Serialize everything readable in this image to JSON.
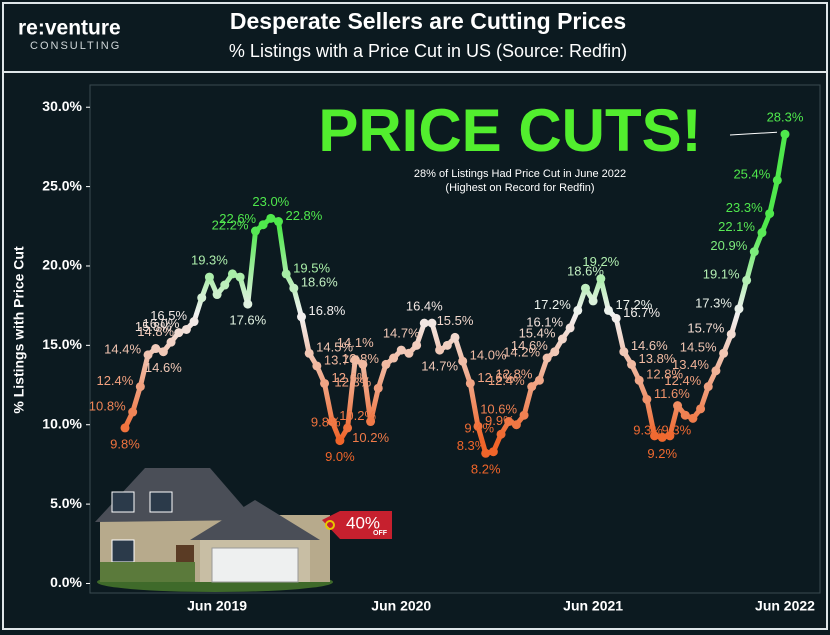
{
  "logo": {
    "name": "re:venture",
    "tagline": "CONSULTING"
  },
  "badge": {
    "value": "40%",
    "sub": "OFF"
  },
  "chart_data": {
    "type": "line",
    "title": "Desperate Sellers are Cutting Prices",
    "subtitle": "% Listings with a Price Cut in US (Source: Redfin)",
    "y_label": "% Listings with Price Cut",
    "annotation": {
      "headline": "PRICE CUTS!",
      "lines": [
        "28% of Listings Had Price Cut in June 2022",
        "(Highest on Record for Redfin)"
      ]
    },
    "gradient": [
      "#f0652a",
      "#f2f2f2",
      "#4fe84c"
    ],
    "ylim": [
      -0.6,
      31.4
    ],
    "yticks": [
      {
        "value": 0,
        "label": "0.0%"
      },
      {
        "value": 5,
        "label": "5.0%"
      },
      {
        "value": 10,
        "label": "10.0%"
      },
      {
        "value": 15,
        "label": "15.0%"
      },
      {
        "value": 20,
        "label": "20.0%"
      },
      {
        "value": 25,
        "label": "25.0%"
      },
      {
        "value": 30,
        "label": "30.0%"
      }
    ],
    "categories": [
      null,
      null,
      null,
      null,
      null,
      null,
      null,
      null,
      null,
      null,
      null,
      null,
      "Jun 2019",
      null,
      null,
      null,
      null,
      null,
      null,
      null,
      null,
      null,
      null,
      null,
      null,
      null,
      null,
      null,
      null,
      null,
      null,
      null,
      null,
      null,
      null,
      null,
      "Jun 2020",
      null,
      null,
      null,
      null,
      null,
      null,
      null,
      null,
      null,
      null,
      null,
      null,
      null,
      null,
      null,
      null,
      null,
      null,
      null,
      null,
      null,
      null,
      null,
      null,
      "Jun 2021",
      null,
      null,
      null,
      null,
      null,
      null,
      null,
      null,
      null,
      null,
      null,
      null,
      null,
      null,
      null,
      null,
      null,
      null,
      null,
      null,
      null,
      null,
      null,
      null,
      "Jun 2022"
    ],
    "values": [
      9.8,
      10.8,
      12.4,
      14.4,
      14.8,
      14.6,
      15.2,
      15.8,
      16.0,
      16.5,
      18.0,
      19.3,
      18.2,
      18.8,
      19.5,
      19.3,
      17.6,
      22.2,
      22.6,
      23.0,
      22.8,
      19.5,
      18.6,
      16.8,
      14.5,
      13.7,
      12.6,
      10.2,
      9.0,
      9.8,
      14.1,
      13.8,
      10.2,
      12.3,
      13.8,
      14.2,
      14.7,
      14.5,
      15.0,
      16.4,
      16.4,
      14.7,
      15.0,
      15.5,
      14.0,
      12.6,
      9.9,
      8.2,
      8.3,
      9.4,
      10.2,
      10.0,
      10.6,
      12.4,
      12.8,
      14.2,
      14.6,
      15.4,
      16.1,
      17.2,
      18.6,
      17.8,
      19.2,
      17.2,
      16.7,
      14.6,
      13.8,
      12.8,
      11.6,
      9.3,
      9.2,
      9.3,
      11.2,
      10.6,
      10.4,
      11.0,
      12.4,
      13.4,
      14.5,
      15.7,
      17.3,
      19.1,
      20.9,
      22.1,
      23.3,
      25.4,
      28.3
    ],
    "value_labels": [
      "9.8%",
      "10.8%",
      "12.4%",
      "14.4%",
      "14.8%",
      "14.6%",
      null,
      "15.8%",
      "16.0%",
      "16.5%",
      null,
      "19.3%",
      null,
      null,
      null,
      null,
      "17.6%",
      "22.2%",
      "22.6%",
      "23.0%",
      "22.8%",
      "19.5%",
      "18.6%",
      "16.8%",
      "14.5%",
      "13.7%",
      "12.6%",
      "10.2%",
      "9.0%",
      "9.8%",
      "14.1%",
      null,
      "10.2%",
      "12.3%",
      "13.8%",
      null,
      "14.7%",
      null,
      null,
      "16.4%",
      null,
      "14.7%",
      null,
      "15.5%",
      "14.0%",
      "12.6%",
      "9.9%",
      "8.2%",
      "8.3%",
      "9.4%",
      null,
      null,
      "10.6%",
      "12.4%",
      "12.8%",
      "14.2%",
      "14.6%",
      "15.4%",
      "16.1%",
      "17.2%",
      "18.6%",
      null,
      "19.2%",
      "17.2%",
      "16.7%",
      "14.6%",
      "13.8%",
      "12.8%",
      "11.6%",
      "9.3%",
      "9.2%",
      "9.3%",
      null,
      null,
      null,
      null,
      "12.4%",
      "13.4%",
      "14.5%",
      "15.7%",
      "17.3%",
      "19.1%",
      "20.9%",
      "22.1%",
      "23.3%",
      "25.4%",
      "28.3%"
    ]
  }
}
